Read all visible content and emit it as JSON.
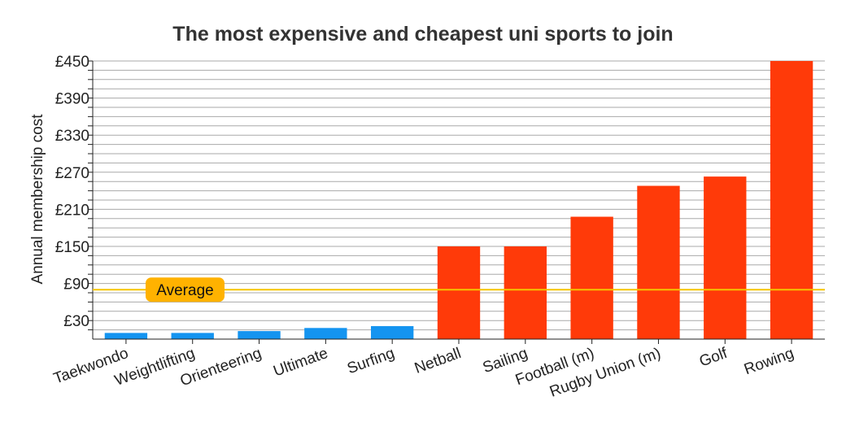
{
  "chart_data": {
    "type": "bar",
    "title": "The most expensive and cheapest uni sports to join",
    "xlabel": "",
    "ylabel": "Annual membership cost",
    "ylim": [
      0,
      450
    ],
    "yticks": [
      "£30",
      "£90",
      "£150",
      "£210",
      "£270",
      "£330",
      "£390",
      "£450"
    ],
    "ytick_values": [
      30,
      90,
      150,
      210,
      270,
      330,
      390,
      450
    ],
    "grid": true,
    "categories": [
      "Taekwondo",
      "Weightlifting",
      "Orienteering",
      "Ultimate",
      "Surfing",
      "Netball",
      "Sailing",
      "Football (m)",
      "Rugby Union (m)",
      "Golf",
      "Rowing"
    ],
    "values": [
      10,
      10,
      13,
      18,
      21,
      150,
      150,
      198,
      248,
      263,
      450
    ],
    "bar_groups": [
      "cheap",
      "cheap",
      "cheap",
      "cheap",
      "cheap",
      "expensive",
      "expensive",
      "expensive",
      "expensive",
      "expensive",
      "expensive"
    ],
    "colors": {
      "cheap": "#1494f0",
      "expensive": "#ff3a09",
      "average": "#f5c400",
      "average_label_bg": "#ffb200"
    },
    "average": {
      "label": "Average",
      "value": 80
    }
  }
}
